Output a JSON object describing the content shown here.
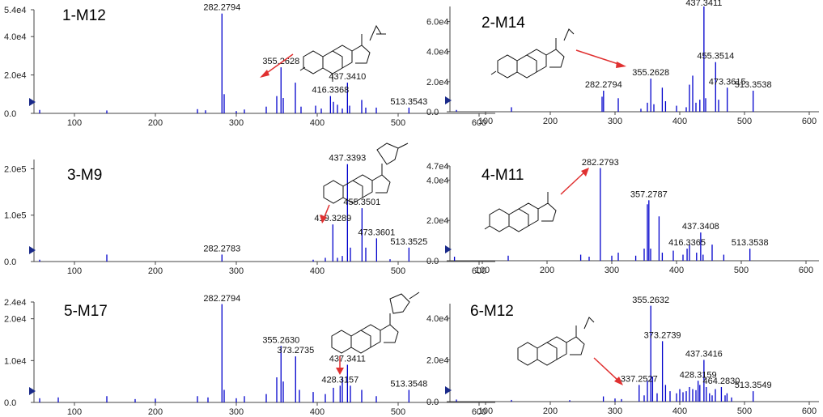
{
  "colors": {
    "peak": "#0000cc",
    "arrow": "#e03030",
    "marker": "#1a2a8a"
  },
  "chart_data": [
    {
      "type": "bar",
      "title": "1-M12",
      "xlim": [
        50,
        620
      ],
      "ylim": [
        0,
        54000
      ],
      "x_ticks": [
        "100",
        "200",
        "300",
        "400",
        "500",
        "600"
      ],
      "x_tick_values": [
        100,
        200,
        300,
        400,
        500,
        600
      ],
      "y_ticks": [
        "0.0",
        "2.0e4",
        "4.0e4",
        "5.4e4"
      ],
      "y_tick_values": [
        0,
        20000,
        40000,
        54000
      ],
      "peaks": [
        [
          57,
          1800
        ],
        [
          140,
          1500
        ],
        [
          252,
          2200
        ],
        [
          262,
          1600
        ],
        [
          282.2794,
          52000
        ],
        [
          285,
          10000
        ],
        [
          300,
          1200
        ],
        [
          310,
          2000
        ],
        [
          337,
          3500
        ],
        [
          350,
          9000
        ],
        [
          355.2628,
          24000
        ],
        [
          358,
          8000
        ],
        [
          373,
          16000
        ],
        [
          380,
          3500
        ],
        [
          398,
          4000
        ],
        [
          405,
          2500
        ],
        [
          416.3368,
          9000
        ],
        [
          420,
          6000
        ],
        [
          425,
          4500
        ],
        [
          431,
          2500
        ],
        [
          437.341,
          16000
        ],
        [
          440,
          4000
        ],
        [
          455,
          7000
        ],
        [
          460,
          3000
        ],
        [
          473,
          3000
        ],
        [
          513.3543,
          3000
        ]
      ],
      "labels": [
        {
          "x": 282.2794,
          "text": "282.2794"
        },
        {
          "x": 355.2628,
          "text": "355.2628"
        },
        {
          "x": 437.341,
          "text": "437.3410"
        },
        {
          "x": 416.3368,
          "text": "416.3368"
        },
        {
          "x": 513.3543,
          "text": "513.3543"
        }
      ]
    },
    {
      "type": "bar",
      "title": "2-M14",
      "xlim": [
        45,
        615
      ],
      "ylim": [
        0,
        70000
      ],
      "x_ticks": [
        "100",
        "200",
        "300",
        "400",
        "500",
        "600"
      ],
      "x_tick_values": [
        100,
        200,
        300,
        400,
        500,
        600
      ],
      "y_ticks": [
        "0.0",
        "2.0e4",
        "4.0e4",
        "6.0e4"
      ],
      "y_tick_values": [
        0,
        20000,
        40000,
        60000
      ],
      "peaks": [
        [
          55,
          1200
        ],
        [
          140,
          3000
        ],
        [
          280,
          10000
        ],
        [
          282.2794,
          14000
        ],
        [
          305,
          9000
        ],
        [
          340,
          2000
        ],
        [
          350,
          6000
        ],
        [
          355.2628,
          22000
        ],
        [
          360,
          5000
        ],
        [
          373,
          16000
        ],
        [
          378,
          7000
        ],
        [
          395,
          4000
        ],
        [
          410,
          3000
        ],
        [
          415,
          18000
        ],
        [
          420,
          24000
        ],
        [
          425,
          6000
        ],
        [
          431,
          8000
        ],
        [
          437.3411,
          70000
        ],
        [
          440,
          9000
        ],
        [
          455.3514,
          33000
        ],
        [
          460,
          8000
        ],
        [
          473.3615,
          16000
        ],
        [
          513.3538,
          14000
        ]
      ],
      "labels": [
        {
          "x": 437.3411,
          "text": "437.3411"
        },
        {
          "x": 455.3514,
          "text": "455.3514"
        },
        {
          "x": 355.2628,
          "text": "355.2628"
        },
        {
          "x": 282.2794,
          "text": "282.2794"
        },
        {
          "x": 473.3615,
          "text": "473.3615"
        },
        {
          "x": 513.3538,
          "text": "513.3538"
        }
      ]
    },
    {
      "type": "bar",
      "title": "3-M9",
      "xlim": [
        50,
        620
      ],
      "ylim": [
        0,
        220000
      ],
      "x_ticks": [
        "100",
        "200",
        "300",
        "400",
        "500",
        "600"
      ],
      "x_tick_values": [
        100,
        200,
        300,
        400,
        500,
        600
      ],
      "y_ticks": [
        "0.0",
        "1.0e5",
        "2.0e5"
      ],
      "y_tick_values": [
        0,
        100000,
        200000
      ],
      "peaks": [
        [
          57,
          4000
        ],
        [
          140,
          15000
        ],
        [
          282.2783,
          15000
        ],
        [
          395,
          4000
        ],
        [
          410,
          8000
        ],
        [
          419.3289,
          80000
        ],
        [
          425,
          8000
        ],
        [
          431,
          12000
        ],
        [
          437.3393,
          210000
        ],
        [
          441,
          30000
        ],
        [
          455.3501,
          115000
        ],
        [
          460,
          30000
        ],
        [
          473.3601,
          50000
        ],
        [
          490,
          5000
        ],
        [
          513.3525,
          30000
        ]
      ],
      "labels": [
        {
          "x": 437.3393,
          "text": "437.3393"
        },
        {
          "x": 455.3501,
          "text": "455.3501"
        },
        {
          "x": 419.3289,
          "text": "419.3289"
        },
        {
          "x": 473.3601,
          "text": "473.3601"
        },
        {
          "x": 282.2783,
          "text": "282.2783"
        },
        {
          "x": 513.3525,
          "text": "513.3525"
        }
      ]
    },
    {
      "type": "bar",
      "title": "4-M11",
      "xlim": [
        50,
        620
      ],
      "ylim": [
        0,
        47000
      ],
      "x_ticks": [
        "100",
        "200",
        "300",
        "400",
        "500",
        "600"
      ],
      "x_tick_values": [
        100,
        200,
        300,
        400,
        500,
        600
      ],
      "y_ticks": [
        "0.0",
        "2.0e4",
        "4.0e4",
        "4.7e4"
      ],
      "y_tick_values": [
        0,
        20000,
        40000,
        47000
      ],
      "peaks": [
        [
          57,
          2000
        ],
        [
          140,
          2500
        ],
        [
          252,
          3000
        ],
        [
          265,
          2000
        ],
        [
          282.2793,
          46000
        ],
        [
          300,
          2500
        ],
        [
          310,
          4000
        ],
        [
          337,
          2500
        ],
        [
          350,
          6000
        ],
        [
          355,
          28000
        ],
        [
          357.2787,
          30000
        ],
        [
          360,
          6000
        ],
        [
          373,
          22000
        ],
        [
          378,
          4000
        ],
        [
          395,
          5000
        ],
        [
          410,
          3000
        ],
        [
          416.3365,
          6000
        ],
        [
          420,
          8000
        ],
        [
          431,
          4000
        ],
        [
          437.3408,
          14000
        ],
        [
          441,
          3000
        ],
        [
          455,
          8000
        ],
        [
          473,
          3000
        ],
        [
          513.3538,
          6000
        ]
      ],
      "labels": [
        {
          "x": 282.2793,
          "text": "282.2793"
        },
        {
          "x": 357.2787,
          "text": "357.2787"
        },
        {
          "x": 437.3408,
          "text": "437.3408"
        },
        {
          "x": 416.3365,
          "text": "416.3365"
        },
        {
          "x": 513.3538,
          "text": "513.3538"
        }
      ]
    },
    {
      "type": "bar",
      "title": "5-M17",
      "xlim": [
        50,
        620
      ],
      "ylim": [
        0,
        24000
      ],
      "x_ticks": [
        "100",
        "200",
        "300",
        "400",
        "500",
        "600"
      ],
      "x_tick_values": [
        100,
        200,
        300,
        400,
        500,
        600
      ],
      "y_ticks": [
        "0.0",
        "1.0e4",
        "2.0e4",
        "2.4e4"
      ],
      "y_tick_values": [
        0,
        10000,
        20000,
        24000
      ],
      "peaks": [
        [
          57,
          1000
        ],
        [
          80,
          1200
        ],
        [
          140,
          1500
        ],
        [
          175,
          800
        ],
        [
          200,
          900
        ],
        [
          252,
          1500
        ],
        [
          265,
          1200
        ],
        [
          282.2794,
          23500
        ],
        [
          285,
          3000
        ],
        [
          300,
          1000
        ],
        [
          310,
          1500
        ],
        [
          337,
          2000
        ],
        [
          350,
          6000
        ],
        [
          355.263,
          13500
        ],
        [
          358,
          5000
        ],
        [
          373.2735,
          11000
        ],
        [
          378,
          3000
        ],
        [
          395,
          2500
        ],
        [
          410,
          2000
        ],
        [
          420,
          3500
        ],
        [
          428.3157,
          4000
        ],
        [
          431,
          6000
        ],
        [
          437.3411,
          9000
        ],
        [
          441,
          4000
        ],
        [
          455,
          3000
        ],
        [
          473,
          1500
        ],
        [
          513.3548,
          3000
        ]
      ],
      "labels": [
        {
          "x": 282.2794,
          "text": "282.2794"
        },
        {
          "x": 355.263,
          "text": "355.2630"
        },
        {
          "x": 373.2735,
          "text": "373.2735"
        },
        {
          "x": 437.3411,
          "text": "437.3411"
        },
        {
          "x": 428.3157,
          "text": "428.3157"
        },
        {
          "x": 513.3548,
          "text": "513.3548"
        }
      ]
    },
    {
      "type": "bar",
      "title": "6-M12",
      "xlim": [
        45,
        615
      ],
      "ylim": [
        0,
        47000
      ],
      "x_ticks": [
        "100",
        "200",
        "300",
        "400",
        "500",
        "600"
      ],
      "x_tick_values": [
        100,
        200,
        300,
        400,
        500,
        600
      ],
      "y_ticks": [
        "0.0",
        "2.0e4",
        "4.0e4"
      ],
      "y_tick_values": [
        0,
        20000,
        40000
      ],
      "peaks": [
        [
          55,
          1000
        ],
        [
          140,
          800
        ],
        [
          230,
          700
        ],
        [
          282,
          2500
        ],
        [
          300,
          1500
        ],
        [
          310,
          1200
        ],
        [
          337.2527,
          8000
        ],
        [
          345,
          3000
        ],
        [
          350,
          10000
        ],
        [
          355.2632,
          46000
        ],
        [
          358,
          12000
        ],
        [
          365,
          4000
        ],
        [
          373.2739,
          29000
        ],
        [
          378,
          8000
        ],
        [
          385,
          5000
        ],
        [
          395,
          4000
        ],
        [
          400,
          6000
        ],
        [
          405,
          4500
        ],
        [
          410,
          5000
        ],
        [
          415,
          7000
        ],
        [
          420,
          6000
        ],
        [
          425,
          5500
        ],
        [
          428.3159,
          10000
        ],
        [
          431,
          8000
        ],
        [
          437.3416,
          20000
        ],
        [
          441,
          7000
        ],
        [
          446,
          4000
        ],
        [
          450,
          3000
        ],
        [
          455,
          6000
        ],
        [
          464.283,
          7000
        ],
        [
          470,
          3000
        ],
        [
          473,
          4000
        ],
        [
          480,
          2000
        ],
        [
          513.3549,
          5000
        ]
      ],
      "labels": [
        {
          "x": 355.2632,
          "text": "355.2632"
        },
        {
          "x": 373.2739,
          "text": "373.2739"
        },
        {
          "x": 437.3416,
          "text": "437.3416"
        },
        {
          "x": 428.3159,
          "text": "428.3159"
        },
        {
          "x": 464.283,
          "text": "464.2830"
        },
        {
          "x": 337.2527,
          "text": "337.2527"
        },
        {
          "x": 513.3549,
          "text": "513.3549"
        }
      ]
    }
  ]
}
